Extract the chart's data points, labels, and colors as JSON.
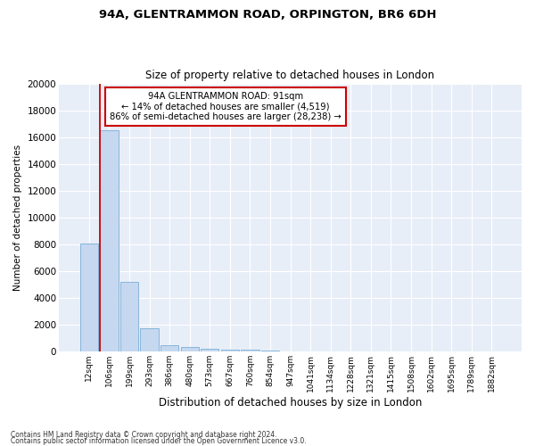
{
  "title1": "94A, GLENTRAMMON ROAD, ORPINGTON, BR6 6DH",
  "title2": "Size of property relative to detached houses in London",
  "xlabel": "Distribution of detached houses by size in London",
  "ylabel": "Number of detached properties",
  "categories": [
    "12sqm",
    "106sqm",
    "199sqm",
    "293sqm",
    "386sqm",
    "480sqm",
    "573sqm",
    "667sqm",
    "760sqm",
    "854sqm",
    "947sqm",
    "1041sqm",
    "1134sqm",
    "1228sqm",
    "1321sqm",
    "1415sqm",
    "1508sqm",
    "1602sqm",
    "1695sqm",
    "1789sqm",
    "1882sqm"
  ],
  "values": [
    8050,
    16500,
    5200,
    1750,
    450,
    350,
    200,
    150,
    110,
    70,
    0,
    0,
    0,
    0,
    0,
    0,
    0,
    0,
    0,
    0,
    0
  ],
  "bar_color": "#c5d8f0",
  "bar_edge_color": "#7aaed6",
  "annotation_text_line1": "94A GLENTRAMMON ROAD: 91sqm",
  "annotation_text_line2": "← 14% of detached houses are smaller (4,519)",
  "annotation_text_line3": "86% of semi-detached houses are larger (28,238) →",
  "annotation_box_facecolor": "#ffffff",
  "annotation_box_edgecolor": "#cc0000",
  "footer1": "Contains HM Land Registry data © Crown copyright and database right 2024.",
  "footer2": "Contains public sector information licensed under the Open Government Licence v3.0.",
  "vline_color": "#cc0000",
  "vline_x_index": 1,
  "axes_bg_color": "#e8eef8",
  "ylim": [
    0,
    20000
  ],
  "yticks": [
    0,
    2000,
    4000,
    6000,
    8000,
    10000,
    12000,
    14000,
    16000,
    18000,
    20000
  ]
}
